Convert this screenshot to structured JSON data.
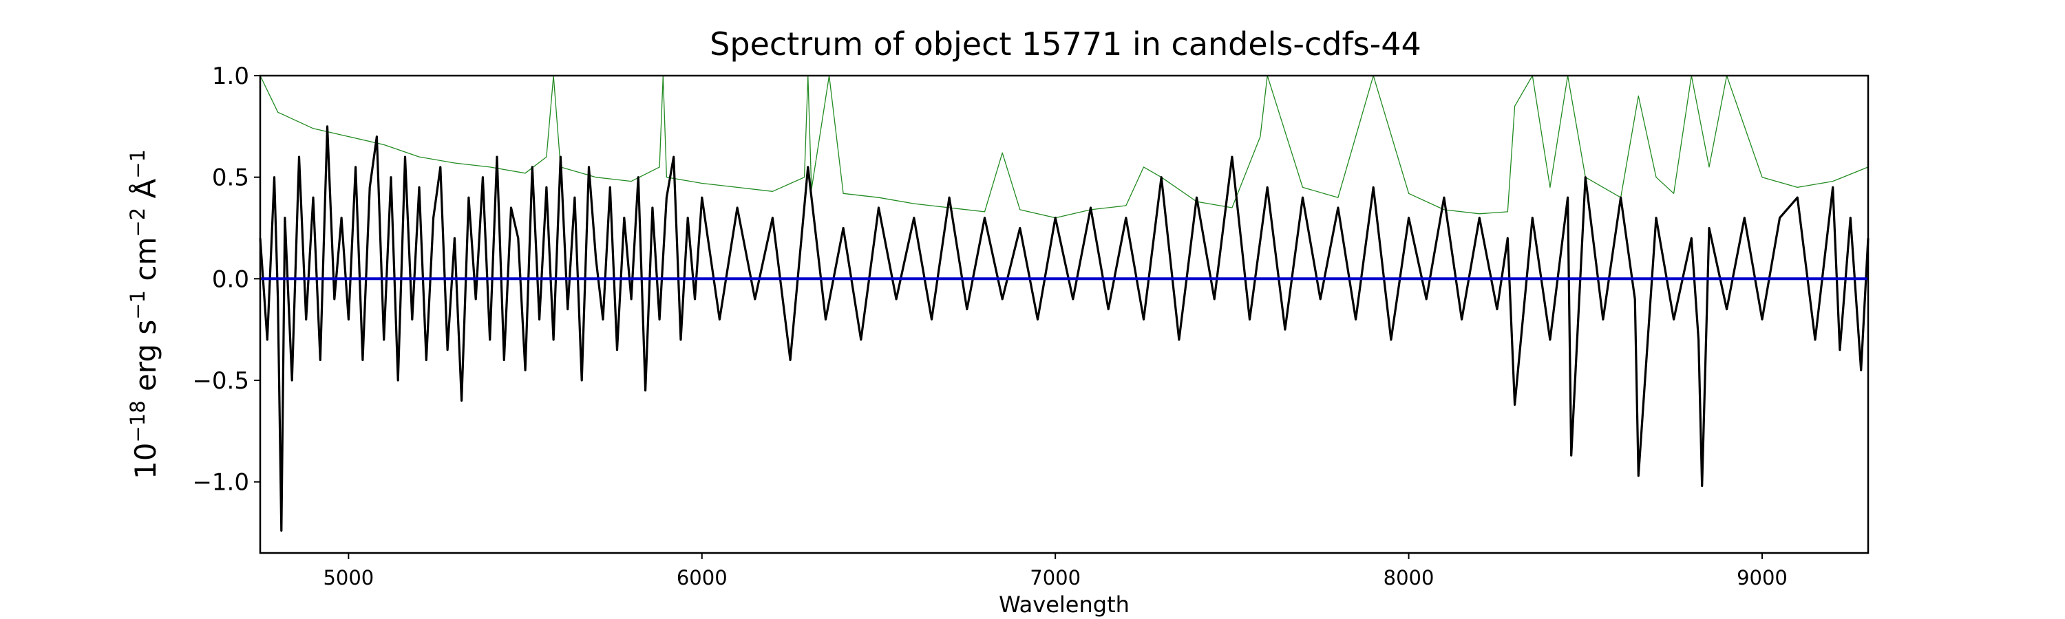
{
  "chart_data": {
    "type": "line",
    "title": "Spectrum of object 15771 in candels-cdfs-44",
    "xlabel": "Wavelength",
    "ylabel": {
      "base": "10",
      "base_exp": "−18",
      "erg": " erg s",
      "s_exp": "−1",
      "cm": " cm",
      "cm_exp": "−2",
      "ang": " Å",
      "ang_exp": "−1"
    },
    "xlim": [
      4750,
      9300
    ],
    "ylim": [
      -1.35,
      1.0
    ],
    "xticks": [
      {
        "value": 5000,
        "label": "5000"
      },
      {
        "value": 6000,
        "label": "6000"
      },
      {
        "value": 7000,
        "label": "7000"
      },
      {
        "value": 8000,
        "label": "8000"
      },
      {
        "value": 9000,
        "label": "9000"
      }
    ],
    "yticks": [
      {
        "value": 1.0,
        "label": "1.0"
      },
      {
        "value": 0.5,
        "label": "0.5"
      },
      {
        "value": 0.0,
        "label": "0.0"
      },
      {
        "value": -0.5,
        "label": "−0.5"
      },
      {
        "value": -1.0,
        "label": "−1.0"
      }
    ],
    "grid": false,
    "series": [
      {
        "color": "#228b22",
        "values": {
          "x": [
            4750,
            4800,
            4900,
            5000,
            5100,
            5200,
            5300,
            5400,
            5500,
            5560,
            5580,
            5600,
            5700,
            5800,
            5880,
            5890,
            5900,
            6000,
            6100,
            6200,
            6290,
            6300,
            6310,
            6360,
            6400,
            6500,
            6600,
            6700,
            6800,
            6850,
            6900,
            7000,
            7100,
            7200,
            7250,
            7300,
            7400,
            7500,
            7580,
            7600,
            7700,
            7800,
            7900,
            8000,
            8100,
            8200,
            8280,
            8300,
            8350,
            8400,
            8450,
            8500,
            8600,
            8650,
            8700,
            8750,
            8800,
            8850,
            8900,
            9000,
            9100,
            9200,
            9300
          ],
          "y": [
            1.0,
            0.82,
            0.74,
            0.7,
            0.66,
            0.6,
            0.57,
            0.55,
            0.52,
            0.6,
            1.0,
            0.55,
            0.5,
            0.48,
            0.55,
            1.0,
            0.5,
            0.47,
            0.45,
            0.43,
            0.5,
            1.0,
            0.44,
            1.0,
            0.42,
            0.4,
            0.37,
            0.35,
            0.33,
            0.62,
            0.34,
            0.3,
            0.34,
            0.36,
            0.55,
            0.5,
            0.38,
            0.35,
            0.7,
            1.0,
            0.45,
            0.4,
            1.0,
            0.42,
            0.34,
            0.32,
            0.33,
            0.85,
            1.0,
            0.45,
            1.0,
            0.5,
            0.4,
            0.9,
            0.5,
            0.42,
            1.0,
            0.55,
            1.0,
            0.5,
            0.45,
            0.48,
            0.55
          ]
        }
      },
      {
        "color": "#000000",
        "values": {
          "x": [
            4750,
            4770,
            4790,
            4800,
            4810,
            4820,
            4840,
            4860,
            4880,
            4900,
            4920,
            4940,
            4960,
            4980,
            5000,
            5020,
            5040,
            5060,
            5080,
            5100,
            5120,
            5140,
            5160,
            5180,
            5200,
            5220,
            5240,
            5260,
            5280,
            5300,
            5320,
            5340,
            5360,
            5380,
            5400,
            5420,
            5440,
            5460,
            5480,
            5500,
            5520,
            5540,
            5560,
            5580,
            5600,
            5620,
            5640,
            5660,
            5680,
            5700,
            5720,
            5740,
            5760,
            5780,
            5800,
            5820,
            5840,
            5860,
            5880,
            5900,
            5920,
            5940,
            5960,
            5980,
            6000,
            6050,
            6100,
            6150,
            6200,
            6250,
            6300,
            6350,
            6400,
            6450,
            6500,
            6550,
            6600,
            6650,
            6700,
            6750,
            6800,
            6850,
            6900,
            6950,
            7000,
            7050,
            7100,
            7150,
            7200,
            7250,
            7300,
            7350,
            7400,
            7450,
            7500,
            7550,
            7600,
            7650,
            7700,
            7750,
            7800,
            7850,
            7900,
            7950,
            8000,
            8050,
            8100,
            8150,
            8200,
            8250,
            8280,
            8300,
            8350,
            8400,
            8450,
            8460,
            8500,
            8550,
            8600,
            8640,
            8650,
            8700,
            8750,
            8800,
            8820,
            8830,
            8850,
            8900,
            8950,
            9000,
            9050,
            9100,
            9150,
            9200,
            9220,
            9250,
            9280,
            9300
          ],
          "y": [
            0.2,
            -0.3,
            0.5,
            -0.1,
            -1.24,
            0.3,
            -0.5,
            0.6,
            -0.2,
            0.4,
            -0.4,
            0.75,
            -0.1,
            0.3,
            -0.2,
            0.55,
            -0.4,
            0.45,
            0.7,
            -0.3,
            0.5,
            -0.5,
            0.6,
            -0.2,
            0.45,
            -0.4,
            0.3,
            0.55,
            -0.35,
            0.2,
            -0.6,
            0.4,
            -0.1,
            0.5,
            -0.3,
            0.6,
            -0.4,
            0.35,
            0.2,
            -0.45,
            0.55,
            -0.2,
            0.45,
            -0.3,
            0.6,
            -0.15,
            0.4,
            -0.5,
            0.55,
            0.1,
            -0.2,
            0.45,
            -0.35,
            0.3,
            -0.1,
            0.5,
            -0.55,
            0.35,
            -0.2,
            0.4,
            0.6,
            -0.3,
            0.3,
            -0.1,
            0.4,
            -0.2,
            0.35,
            -0.1,
            0.3,
            -0.4,
            0.55,
            -0.2,
            0.25,
            -0.3,
            0.35,
            -0.1,
            0.3,
            -0.2,
            0.4,
            -0.15,
            0.3,
            -0.1,
            0.25,
            -0.2,
            0.3,
            -0.1,
            0.35,
            -0.15,
            0.3,
            -0.2,
            0.5,
            -0.3,
            0.4,
            -0.1,
            0.6,
            -0.2,
            0.45,
            -0.25,
            0.4,
            -0.1,
            0.35,
            -0.2,
            0.45,
            -0.3,
            0.3,
            -0.1,
            0.4,
            -0.2,
            0.3,
            -0.15,
            0.2,
            -0.62,
            0.3,
            -0.3,
            0.4,
            -0.87,
            0.5,
            -0.2,
            0.4,
            -0.1,
            -0.97,
            0.3,
            -0.2,
            0.2,
            -0.3,
            -1.02,
            0.25,
            -0.15,
            0.3,
            -0.2,
            0.3,
            0.4,
            -0.3,
            0.45,
            -0.35,
            0.3,
            -0.45,
            0.2
          ]
        }
      },
      {
        "color": "#0000cd",
        "values": {
          "x": [
            4750,
            9300
          ],
          "y": [
            0.0,
            0.0
          ]
        }
      }
    ]
  }
}
